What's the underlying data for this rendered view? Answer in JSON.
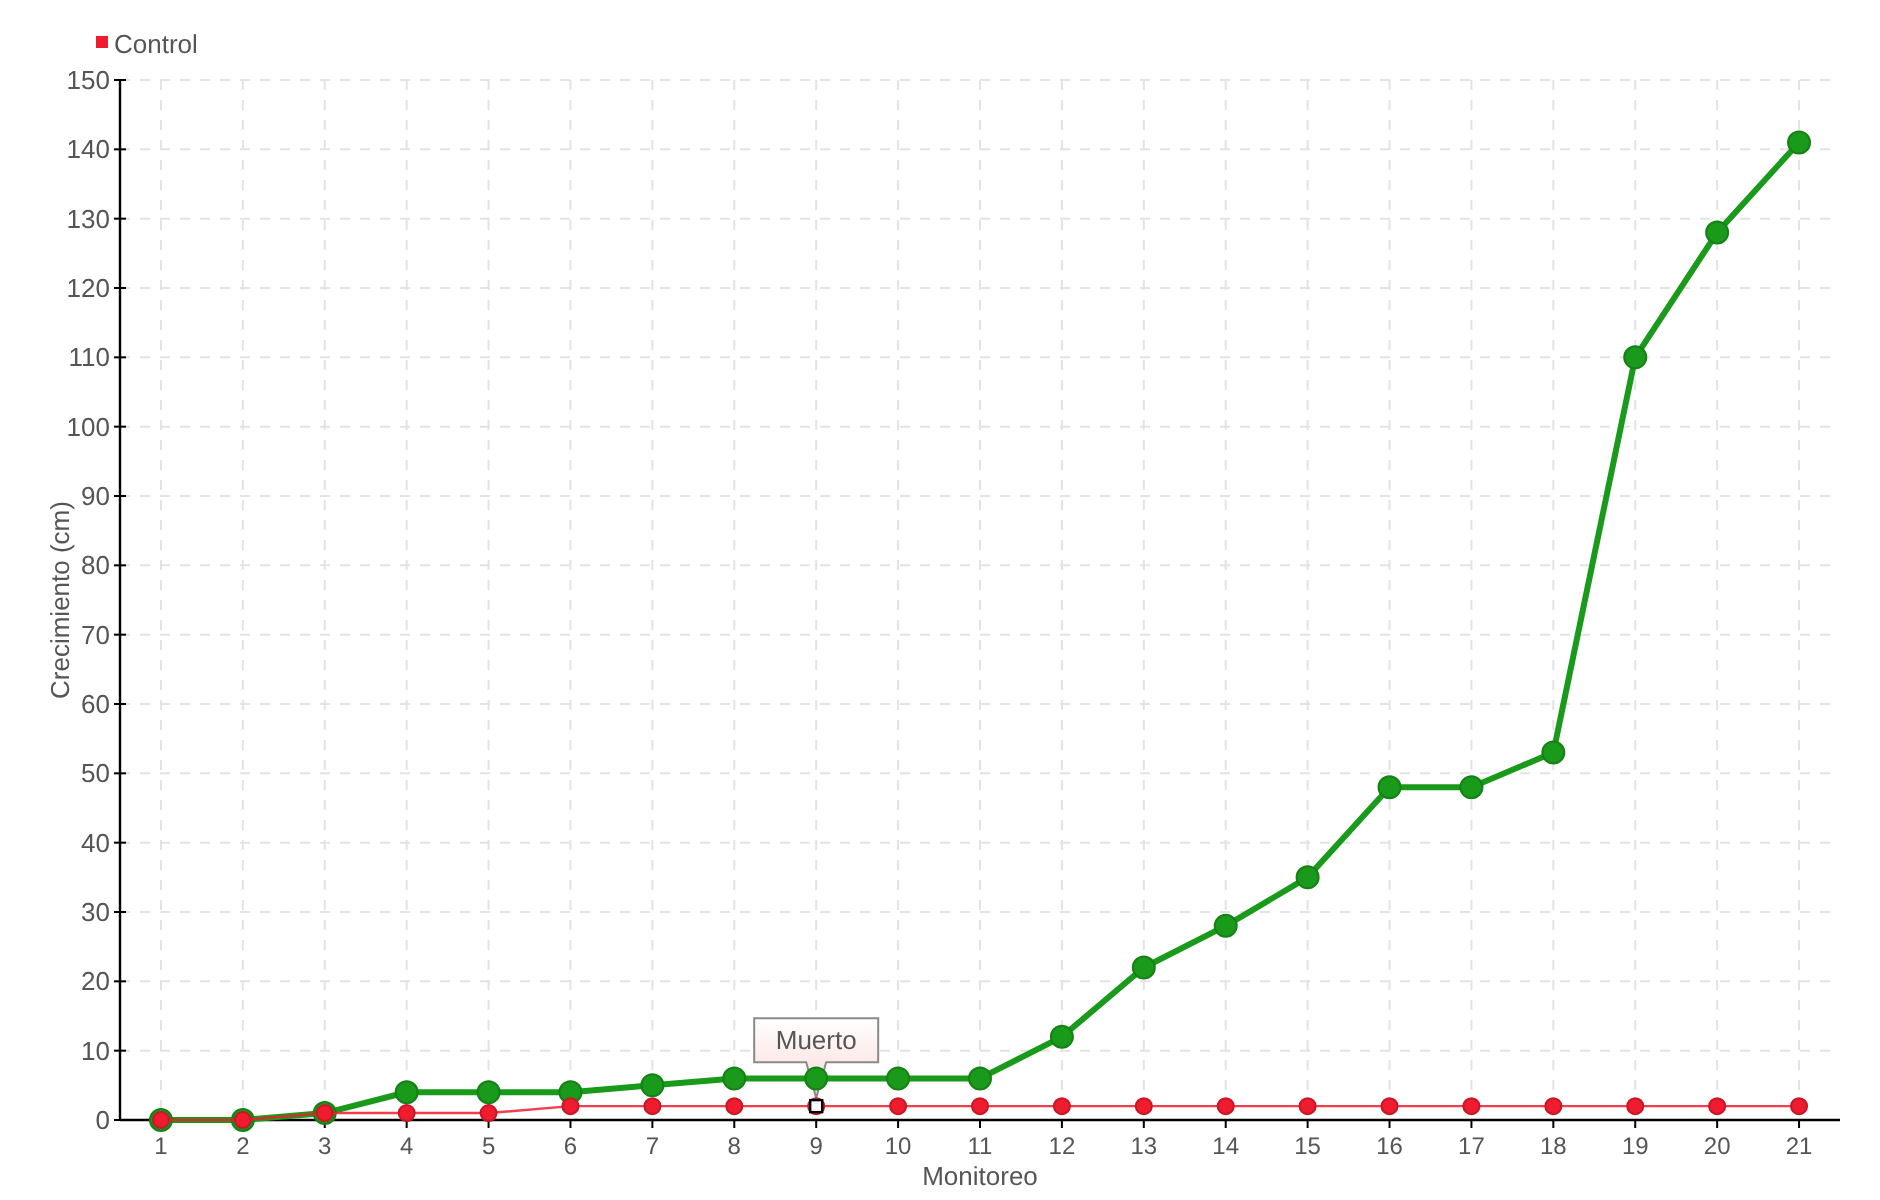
{
  "chart_data": {
    "type": "line",
    "xlabel": "Monitoreo",
    "ylabel": "Crecimiento (cm)",
    "x": [
      1,
      2,
      3,
      4,
      5,
      6,
      7,
      8,
      9,
      10,
      11,
      12,
      13,
      14,
      15,
      16,
      17,
      18,
      19,
      20,
      21
    ],
    "series": [
      {
        "color": "#1a9a1a",
        "values": [
          0,
          0,
          1,
          4,
          4,
          4,
          5,
          6,
          6,
          6,
          6,
          12,
          22,
          28,
          35,
          48,
          48,
          53,
          110,
          128,
          141
        ]
      },
      {
        "name": "Control",
        "color": "#ee1c2e",
        "values": [
          0,
          0,
          1,
          1,
          1,
          2,
          2,
          2,
          2,
          2,
          2,
          2,
          2,
          2,
          2,
          2,
          2,
          2,
          2,
          2,
          2
        ]
      }
    ],
    "xlim": [
      0.5,
      21.5
    ],
    "xticks": [
      1,
      2,
      3,
      4,
      5,
      6,
      7,
      8,
      9,
      10,
      11,
      12,
      13,
      14,
      15,
      16,
      17,
      18,
      19,
      20,
      21
    ],
    "ylim": [
      0,
      150
    ],
    "yticks": [
      0,
      10,
      20,
      30,
      40,
      50,
      60,
      70,
      80,
      90,
      100,
      110,
      120,
      130,
      140,
      150
    ],
    "grid": true,
    "legend": "top left",
    "marker": "circle",
    "line_style": "solid",
    "annotations": [
      {
        "text": "Muerto",
        "x": 9,
        "y": 2
      }
    ]
  }
}
